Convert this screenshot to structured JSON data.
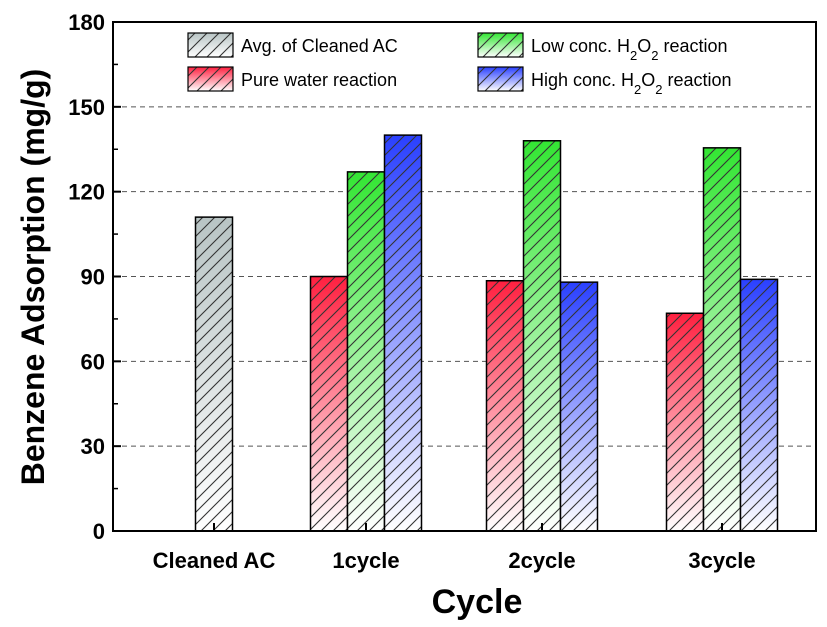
{
  "chart_data": {
    "type": "bar",
    "xlabel": "Cycle",
    "ylabel": "Benzene Adsorption (mg/g)",
    "ylim": [
      0,
      180
    ],
    "yticks": [
      0,
      30,
      60,
      90,
      120,
      150,
      180
    ],
    "grid": "horizontal dashed",
    "legend_position": "top",
    "categories": [
      "Cleaned AC",
      "1cycle",
      "2cycle",
      "3cycle"
    ],
    "series": [
      {
        "name": "Avg. of Cleaned AC",
        "color": "#b8c4c4",
        "values": [
          111,
          null,
          null,
          null
        ]
      },
      {
        "name": "Pure water reaction",
        "color": "#ff2040",
        "values": [
          null,
          90,
          88.5,
          77
        ]
      },
      {
        "name": "Low conc. H2O2 reaction",
        "color": "#33e633",
        "values": [
          null,
          127,
          138,
          135.5
        ]
      },
      {
        "name": "High conc. H2O2 reaction",
        "color": "#2a40ff",
        "values": [
          null,
          140,
          88,
          89
        ]
      }
    ]
  }
}
